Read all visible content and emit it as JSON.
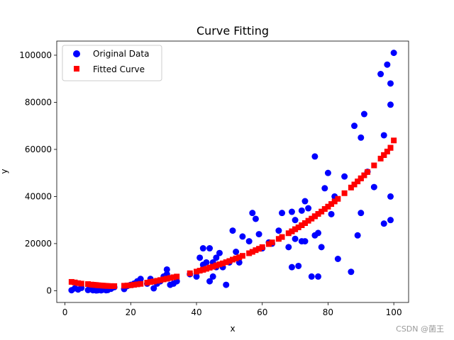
{
  "chart_data": {
    "type": "scatter",
    "title": "Curve Fitting",
    "xlabel": "x",
    "ylabel": "y",
    "xlim": [
      -2.5,
      104.5
    ],
    "ylim": [
      -5000,
      106000
    ],
    "xticks": [
      0,
      20,
      40,
      60,
      80,
      100
    ],
    "xtick_labels": [
      "0",
      "20",
      "40",
      "60",
      "80",
      "100"
    ],
    "yticks": [
      0,
      20000,
      40000,
      60000,
      80000,
      100000
    ],
    "ytick_labels": [
      "0",
      "20000",
      "40000",
      "60000",
      "80000",
      "100000"
    ],
    "grid": false,
    "legend_position": "upper-left",
    "series": [
      {
        "name": "Original Data",
        "marker": "circle",
        "color": "#0000ff",
        "x": [
          2,
          3,
          4,
          5,
          7,
          8,
          8.5,
          9,
          9.5,
          10,
          10.5,
          11,
          11.5,
          12,
          12.5,
          13,
          14,
          15,
          18,
          19,
          20,
          21,
          22,
          23,
          25,
          26,
          27,
          28,
          29,
          30,
          31,
          31,
          32,
          33,
          34,
          38,
          40,
          41,
          42,
          42,
          43,
          44,
          44,
          45,
          45,
          46,
          46,
          47,
          48,
          49,
          50,
          51,
          52,
          53,
          54,
          56,
          57,
          58,
          59,
          60,
          62,
          63,
          65,
          66,
          68,
          69,
          69,
          70,
          70,
          71,
          72,
          72,
          73,
          73,
          74,
          75,
          76,
          76,
          77,
          77,
          78,
          79,
          80,
          81,
          82,
          83,
          85,
          87,
          88,
          89,
          90,
          90,
          91,
          92,
          94,
          96,
          97,
          97,
          98,
          99,
          99,
          99,
          99,
          100
        ],
        "y": [
          200,
          1000,
          500,
          1200,
          300,
          800,
          200,
          600,
          100,
          200,
          800,
          150,
          400,
          700,
          200,
          300,
          800,
          1500,
          700,
          2000,
          2500,
          3000,
          4000,
          5000,
          3000,
          5000,
          1000,
          3000,
          4000,
          6000,
          9000,
          7000,
          2500,
          3000,
          4000,
          7000,
          6000,
          14000,
          11000,
          18000,
          12000,
          4000,
          18000,
          6000,
          12000,
          10000,
          14000,
          16000,
          10000,
          2500,
          12000,
          25500,
          16500,
          12000,
          23000,
          21000,
          33000,
          30500,
          24000,
          18000,
          20500,
          20000,
          25500,
          33000,
          18500,
          33500,
          10000,
          22000,
          30000,
          10500,
          34000,
          21000,
          21000,
          38000,
          35000,
          6000,
          57000,
          23500,
          24500,
          6000,
          18500,
          43500,
          50000,
          32500,
          40000,
          13500,
          48500,
          8000,
          70000,
          23500,
          65000,
          33000,
          75000,
          50500,
          44000,
          92000,
          66000,
          28500,
          96000,
          30000,
          40000,
          88000,
          79000,
          101000
        ]
      },
      {
        "name": "Fitted Curve",
        "marker": "square",
        "color": "#ff0000",
        "x": [
          2,
          3,
          4,
          5,
          7,
          8,
          8.5,
          9,
          9.5,
          10,
          10.5,
          11,
          11.5,
          12,
          12.5,
          13,
          14,
          15,
          18,
          19,
          20,
          21,
          22,
          23,
          25,
          26,
          27,
          28,
          29,
          30,
          31,
          31,
          32,
          33,
          34,
          38,
          40,
          41,
          42,
          42,
          43,
          44,
          44,
          45,
          45,
          46,
          46,
          47,
          48,
          49,
          50,
          51,
          52,
          53,
          54,
          56,
          57,
          58,
          59,
          60,
          62,
          63,
          65,
          66,
          68,
          69,
          69,
          70,
          70,
          71,
          72,
          72,
          73,
          73,
          74,
          75,
          76,
          76,
          77,
          77,
          78,
          79,
          80,
          81,
          82,
          83,
          85,
          87,
          88,
          89,
          90,
          90,
          91,
          92,
          94,
          96,
          97,
          97,
          98,
          99,
          99,
          99,
          99,
          100
        ],
        "y": [
          3740,
          3500,
          3200,
          3000,
          2800,
          2600,
          2500,
          2450,
          2400,
          2300,
          2250,
          2200,
          2150,
          2100,
          2050,
          2000,
          1950,
          1950,
          2100,
          2200,
          2300,
          2500,
          2700,
          2900,
          3400,
          3700,
          3900,
          4200,
          4500,
          4800,
          5100,
          5100,
          5400,
          5700,
          6000,
          7400,
          8100,
          8500,
          8900,
          8900,
          9300,
          9800,
          9800,
          10200,
          10200,
          10700,
          10700,
          11200,
          11600,
          12100,
          12600,
          13200,
          13700,
          14200,
          14800,
          15900,
          16500,
          17200,
          17800,
          18500,
          19800,
          20500,
          22000,
          22800,
          24400,
          25200,
          25200,
          26100,
          26100,
          26900,
          27800,
          27800,
          28700,
          28700,
          29700,
          30600,
          31600,
          31600,
          32600,
          32600,
          33600,
          34700,
          35700,
          36800,
          37900,
          39000,
          41400,
          43800,
          45100,
          46400,
          47700,
          47700,
          49000,
          50400,
          53200,
          56100,
          57600,
          57600,
          59100,
          60700,
          60700,
          60700,
          60700,
          63800
        ]
      }
    ]
  },
  "watermark": "CSDN @菌王"
}
